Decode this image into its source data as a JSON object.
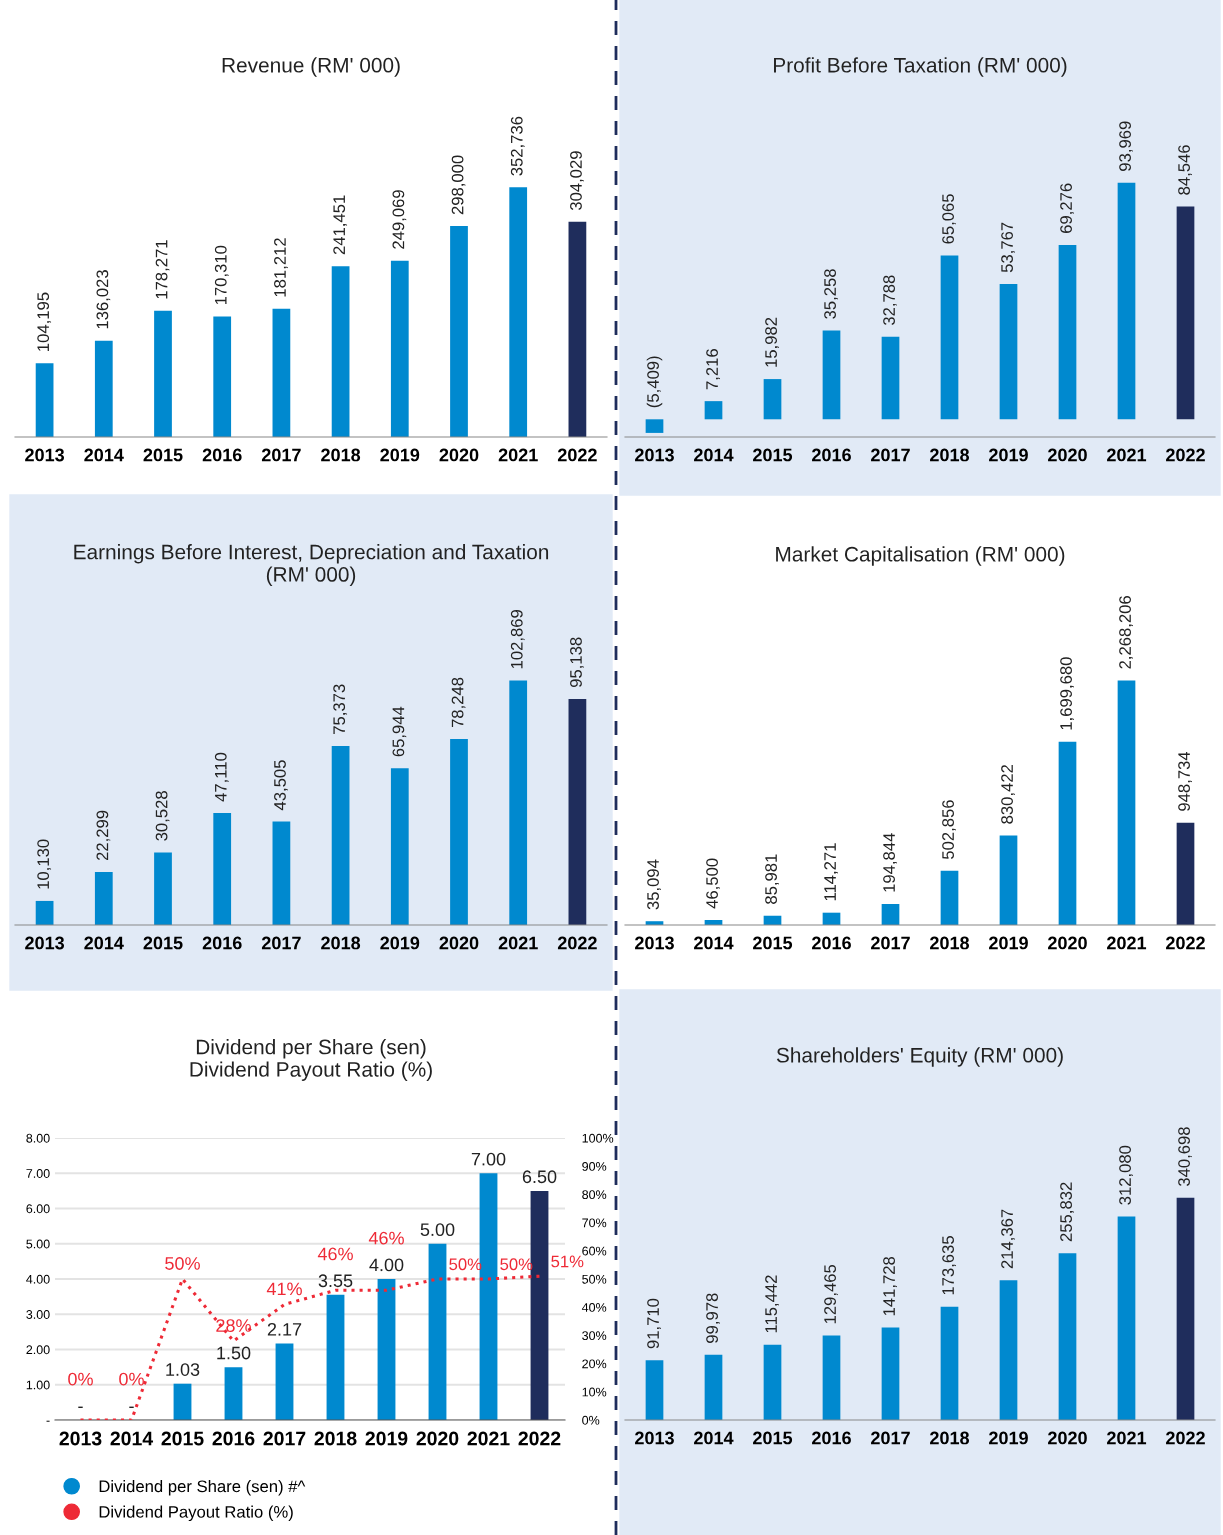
{
  "chart_data": [
    {
      "type": "bar",
      "title": "Revenue (RM' 000)",
      "categories": [
        "2013",
        "2014",
        "2015",
        "2016",
        "2017",
        "2018",
        "2019",
        "2020",
        "2021",
        "2022"
      ],
      "values": [
        104195,
        136023,
        178271,
        170310,
        181212,
        241451,
        249069,
        298000,
        352736,
        304029
      ],
      "value_labels": [
        "104,195",
        "136,023",
        "178,271",
        "170,310",
        "181,212",
        "241,451",
        "249,069",
        "298,000",
        "352,736",
        "304,029"
      ],
      "colors": [
        "#0089cf",
        "#0089cf",
        "#0089cf",
        "#0089cf",
        "#0089cf",
        "#0089cf",
        "#0089cf",
        "#0089cf",
        "#0089cf",
        "#1f2d5c"
      ],
      "tick_labels": "x",
      "grid": false,
      "legend": false
    },
    {
      "type": "bar",
      "title": "Profit Before Taxation (RM' 000)",
      "categories": [
        "2013",
        "2014",
        "2015",
        "2016",
        "2017",
        "2018",
        "2019",
        "2020",
        "2021",
        "2022"
      ],
      "values": [
        -5409,
        7216,
        15982,
        35258,
        32788,
        65065,
        53767,
        69276,
        93969,
        84546
      ],
      "value_labels": [
        "(5,409)",
        "7,216",
        "15,982",
        "35,258",
        "32,788",
        "65,065",
        "53,767",
        "69,276",
        "93,969",
        "84,546"
      ],
      "colors": [
        "#0089cf",
        "#0089cf",
        "#0089cf",
        "#0089cf",
        "#0089cf",
        "#0089cf",
        "#0089cf",
        "#0089cf",
        "#0089cf",
        "#1f2d5c"
      ],
      "tick_labels": "x",
      "grid": false,
      "legend": false
    },
    {
      "type": "bar",
      "title": "Earnings Before Interest, Depreciation and Taxation\n(RM' 000)",
      "categories": [
        "2013",
        "2014",
        "2015",
        "2016",
        "2017",
        "2018",
        "2019",
        "2020",
        "2021",
        "2022"
      ],
      "values": [
        10130,
        22299,
        30528,
        47110,
        43505,
        75373,
        65944,
        78248,
        102869,
        95138
      ],
      "value_labels": [
        "10,130",
        "22,299",
        "30,528",
        "47,110",
        "43,505",
        "75,373",
        "65,944",
        "78,248",
        "102,869",
        "95,138"
      ],
      "colors": [
        "#0089cf",
        "#0089cf",
        "#0089cf",
        "#0089cf",
        "#0089cf",
        "#0089cf",
        "#0089cf",
        "#0089cf",
        "#0089cf",
        "#1f2d5c"
      ],
      "tick_labels": "x",
      "grid": false,
      "legend": false
    },
    {
      "type": "bar",
      "title": "Market Capitalisation (RM' 000)",
      "categories": [
        "2013",
        "2014",
        "2015",
        "2016",
        "2017",
        "2018",
        "2019",
        "2020",
        "2021",
        "2022"
      ],
      "values": [
        35094,
        46500,
        85981,
        114271,
        194844,
        502856,
        830422,
        1699680,
        2268206,
        948734
      ],
      "value_labels": [
        "35,094",
        "46,500",
        "85,981",
        "114,271",
        "194,844",
        "502,856",
        "830,422",
        "1,699,680",
        "2,268,206",
        "948,734"
      ],
      "colors": [
        "#0089cf",
        "#0089cf",
        "#0089cf",
        "#0089cf",
        "#0089cf",
        "#0089cf",
        "#0089cf",
        "#0089cf",
        "#0089cf",
        "#1f2d5c"
      ],
      "tick_labels": "x",
      "grid": false,
      "legend": false
    },
    {
      "type": "bar",
      "title": "Dividend per Share (sen)\nDividend Payout Ratio (%)",
      "categories": [
        "2013",
        "2014",
        "2015",
        "2016",
        "2017",
        "2018",
        "2019",
        "2020",
        "2021",
        "2022"
      ],
      "series": [
        {
          "name": "Dividend per Share (sen) #^",
          "color": "#0089cf",
          "colors": [
            "#0089cf",
            "#0089cf",
            "#0089cf",
            "#0089cf",
            "#0089cf",
            "#0089cf",
            "#0089cf",
            "#0089cf",
            "#0089cf",
            "#1f2d5c"
          ],
          "values": [
            0,
            0,
            1.03,
            1.5,
            2.17,
            3.55,
            4.0,
            5.0,
            7.0,
            6.5
          ],
          "value_labels": [
            "-",
            "-",
            "1.03",
            "1.50",
            "2.17",
            "3.55",
            "4.00",
            "5.00",
            "7.00",
            "6.50"
          ]
        },
        {
          "name": "Dividend Payout Ratio (%)",
          "type": "line",
          "axis": "y2",
          "color": "#ee2a36",
          "line_style": "dotted",
          "marker": "none",
          "values": [
            0,
            0,
            50,
            28,
            41,
            46,
            46,
            50,
            50,
            51
          ],
          "value_labels": [
            "0%",
            "0%",
            "50%",
            "28%",
            "41%",
            "46%",
            "46%",
            "50%",
            "50%",
            "51%"
          ]
        }
      ],
      "ylim": [
        0,
        8
      ],
      "yticks": [
        {
          "value": 0,
          "label": "-"
        },
        {
          "value": 1,
          "label": "1.00"
        },
        {
          "value": 2,
          "label": "2.00"
        },
        {
          "value": 3,
          "label": "3.00"
        },
        {
          "value": 4,
          "label": "4.00"
        },
        {
          "value": 5,
          "label": "5.00"
        },
        {
          "value": 6,
          "label": "6.00"
        },
        {
          "value": 7,
          "label": "7.00"
        },
        {
          "value": 8,
          "label": "8.00"
        }
      ],
      "y2lim": [
        0,
        100
      ],
      "y2ticks": [
        {
          "value": 0,
          "label": "0%"
        },
        {
          "value": 10,
          "label": "10%"
        },
        {
          "value": 20,
          "label": "20%"
        },
        {
          "value": 30,
          "label": "30%"
        },
        {
          "value": 40,
          "label": "40%"
        },
        {
          "value": 50,
          "label": "50%"
        },
        {
          "value": 60,
          "label": "60%"
        },
        {
          "value": 70,
          "label": "70%"
        },
        {
          "value": 80,
          "label": "80%"
        },
        {
          "value": 90,
          "label": "90%"
        },
        {
          "value": 100,
          "label": "100%"
        }
      ],
      "grid": "y",
      "legend": "bottom"
    },
    {
      "type": "bar",
      "title": "Shareholders' Equity (RM' 000)",
      "categories": [
        "2013",
        "2014",
        "2015",
        "2016",
        "2017",
        "2018",
        "2019",
        "2020",
        "2021",
        "2022"
      ],
      "values": [
        91710,
        99978,
        115442,
        129465,
        141728,
        173635,
        214367,
        255832,
        312080,
        340698
      ],
      "value_labels": [
        "91,710",
        "99,978",
        "115,442",
        "129,465",
        "141,728",
        "173,635",
        "214,367",
        "255,832",
        "312,080",
        "340,698"
      ],
      "colors": [
        "#0089cf",
        "#0089cf",
        "#0089cf",
        "#0089cf",
        "#0089cf",
        "#0089cf",
        "#0089cf",
        "#0089cf",
        "#0089cf",
        "#1f2d5c"
      ],
      "tick_labels": "x",
      "grid": false,
      "legend": false
    }
  ]
}
